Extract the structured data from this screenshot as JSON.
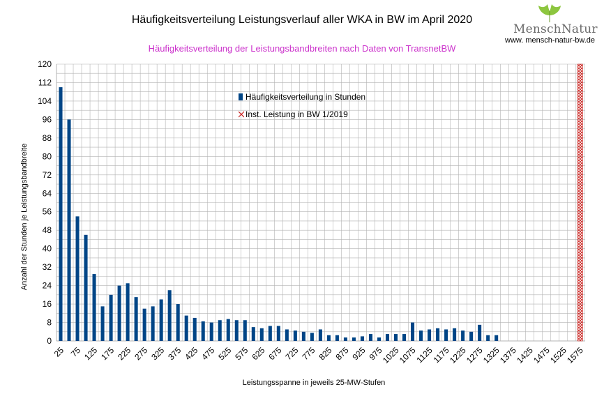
{
  "header": {
    "title": "Häufigkeitsverteilung Leistungsverlauf aller WKA in BW im April 2020",
    "subtitle": "Häufigkeitsverteilung der Leistungsbandbreiten nach Daten von TransnetBW",
    "subtitle_color": "#cc33cc"
  },
  "logo": {
    "name_part1": "Mensch",
    "name_part2": "Natur",
    "url": "www. mensch-natur-bw.de",
    "icon": "ginkgo-leaf-icon",
    "leaf_color": "#8dc63f"
  },
  "chart_data": {
    "type": "bar",
    "title": "Häufigkeitsverteilung Leistungsverlauf aller WKA in BW im April 2020",
    "subtitle": "Häufigkeitsverteilung der Leistungsbandbreiten nach Daten von TransnetBW",
    "xlabel": "Leistungsspanne in jeweils 25-MW-Stufen",
    "ylabel": "Anzahl der Stunden je Leistungsbandbreite",
    "ylim": [
      0,
      120
    ],
    "yticks": [
      0,
      8,
      16,
      24,
      32,
      40,
      48,
      56,
      64,
      72,
      80,
      88,
      96,
      104,
      112,
      120
    ],
    "xtick_labels": [
      "25",
      "75",
      "125",
      "175",
      "225",
      "275",
      "325",
      "375",
      "425",
      "475",
      "525",
      "575",
      "625",
      "675",
      "725",
      "775",
      "825",
      "875",
      "925",
      "975",
      "1025",
      "1075",
      "1125",
      "1175",
      "1225",
      "1275",
      "1325",
      "1375",
      "1425",
      "1475",
      "1525",
      "1575"
    ],
    "categories": [
      25,
      50,
      75,
      100,
      125,
      150,
      175,
      200,
      225,
      250,
      275,
      300,
      325,
      350,
      375,
      400,
      425,
      450,
      475,
      500,
      525,
      550,
      575,
      600,
      625,
      650,
      675,
      700,
      725,
      750,
      775,
      800,
      825,
      850,
      875,
      900,
      925,
      950,
      975,
      1000,
      1025,
      1050,
      1075,
      1100,
      1125,
      1150,
      1175,
      1200,
      1225,
      1250,
      1275,
      1300,
      1325,
      1350,
      1375,
      1400,
      1425,
      1450,
      1475,
      1500,
      1525,
      1550,
      1575
    ],
    "grid": true,
    "series": [
      {
        "name": "Häufigkeitsverteilung in Stunden",
        "color": "#004586",
        "values": [
          110,
          96,
          54,
          46,
          29,
          15,
          20,
          24,
          25,
          19,
          14,
          15,
          18,
          22,
          16,
          11,
          10,
          8.5,
          8,
          9,
          9.5,
          9,
          9,
          6,
          5.5,
          6.5,
          6.5,
          5,
          4.5,
          4,
          3.5,
          5,
          2.5,
          2.5,
          1.5,
          1.5,
          2,
          3,
          1.5,
          3,
          3,
          3,
          8,
          4.5,
          5,
          5.5,
          5,
          5.5,
          4.5,
          4,
          7,
          2.5,
          2.5,
          0,
          0,
          0,
          0,
          0,
          0,
          0,
          0,
          0,
          0
        ]
      },
      {
        "name": "Inst. Leistung in BW 1/2019",
        "color": "#c9211e",
        "marker": "cross-hatch",
        "values": [
          0,
          0,
          0,
          0,
          0,
          0,
          0,
          0,
          0,
          0,
          0,
          0,
          0,
          0,
          0,
          0,
          0,
          0,
          0,
          0,
          0,
          0,
          0,
          0,
          0,
          0,
          0,
          0,
          0,
          0,
          0,
          0,
          0,
          0,
          0,
          0,
          0,
          0,
          0,
          0,
          0,
          0,
          0,
          0,
          0,
          0,
          0,
          0,
          0,
          0,
          0,
          0,
          0,
          0,
          0,
          0,
          0,
          0,
          0,
          0,
          0,
          0,
          120
        ]
      }
    ],
    "legend_position": "top-center"
  }
}
